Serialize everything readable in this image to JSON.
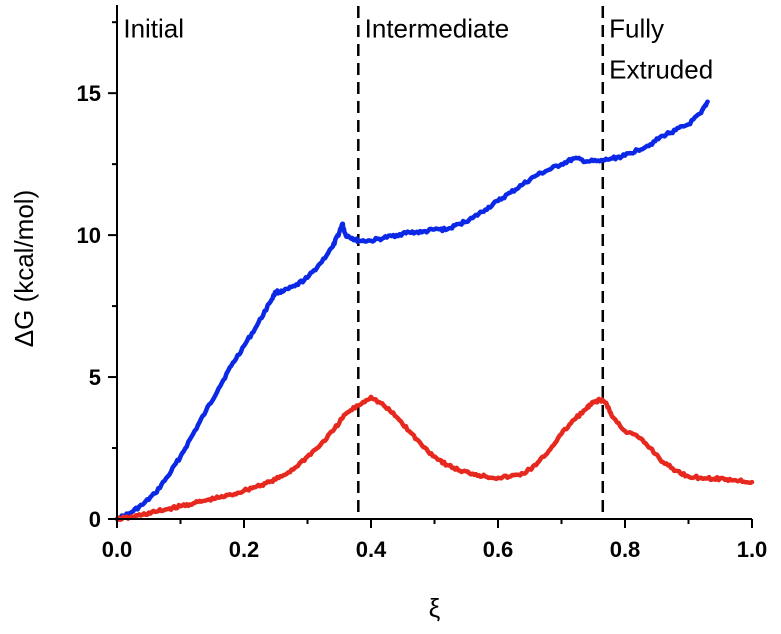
{
  "chart_data": {
    "type": "line",
    "xlabel": "ξ",
    "ylabel": "ΔG (kcal/mol)",
    "xlim": [
      0.0,
      1.0
    ],
    "ylim": [
      0,
      18
    ],
    "x_ticks": [
      "0.0",
      "0.2",
      "0.4",
      "0.6",
      "0.8",
      "1.0"
    ],
    "y_ticks": [
      "0",
      "5",
      "10",
      "15"
    ],
    "grid": false,
    "legend": "none",
    "reference_lines": [
      {
        "x": 0.38,
        "style": "dashed"
      },
      {
        "x": 0.765,
        "style": "dashed"
      }
    ],
    "annotations": [
      {
        "text": "Initial",
        "x": 0.01,
        "y": 17.6
      },
      {
        "text": "Intermediate",
        "x": 0.39,
        "y": 17.6
      },
      {
        "text": "Fully",
        "x": 0.775,
        "y": 17.6
      },
      {
        "text": "Extruded",
        "x": 0.775,
        "y": 16.15
      }
    ],
    "series": [
      {
        "color": "#0a28e6",
        "x": [
          0.0,
          0.02,
          0.04,
          0.06,
          0.08,
          0.1,
          0.12,
          0.14,
          0.16,
          0.18,
          0.2,
          0.22,
          0.24,
          0.25,
          0.26,
          0.28,
          0.3,
          0.32,
          0.34,
          0.35,
          0.355,
          0.36,
          0.37,
          0.38,
          0.4,
          0.42,
          0.44,
          0.46,
          0.48,
          0.5,
          0.52,
          0.54,
          0.56,
          0.58,
          0.6,
          0.62,
          0.64,
          0.66,
          0.68,
          0.7,
          0.72,
          0.74,
          0.76,
          0.78,
          0.8,
          0.82,
          0.84,
          0.86,
          0.88,
          0.9,
          0.92,
          0.93
        ],
        "y": [
          0.0,
          0.2,
          0.5,
          0.9,
          1.5,
          2.2,
          3.0,
          3.8,
          4.6,
          5.4,
          6.1,
          6.8,
          7.6,
          8.0,
          8.0,
          8.2,
          8.5,
          9.0,
          9.6,
          10.1,
          10.4,
          10.0,
          9.9,
          9.8,
          9.8,
          9.9,
          10.0,
          10.1,
          10.1,
          10.2,
          10.2,
          10.4,
          10.6,
          10.9,
          11.2,
          11.5,
          11.8,
          12.1,
          12.3,
          12.5,
          12.7,
          12.6,
          12.6,
          12.7,
          12.8,
          13.0,
          13.2,
          13.5,
          13.7,
          13.9,
          14.3,
          14.7
        ]
      },
      {
        "color": "#e6281e",
        "x": [
          0.0,
          0.02,
          0.04,
          0.06,
          0.08,
          0.1,
          0.12,
          0.14,
          0.16,
          0.18,
          0.2,
          0.22,
          0.24,
          0.26,
          0.28,
          0.3,
          0.32,
          0.34,
          0.36,
          0.38,
          0.4,
          0.42,
          0.44,
          0.46,
          0.48,
          0.5,
          0.52,
          0.54,
          0.56,
          0.58,
          0.6,
          0.62,
          0.64,
          0.66,
          0.68,
          0.7,
          0.72,
          0.74,
          0.75,
          0.76,
          0.77,
          0.78,
          0.8,
          0.82,
          0.84,
          0.86,
          0.88,
          0.9,
          0.92,
          0.94,
          0.96,
          0.98,
          1.0
        ],
        "y": [
          0.0,
          0.05,
          0.15,
          0.25,
          0.35,
          0.45,
          0.55,
          0.65,
          0.75,
          0.85,
          1.0,
          1.15,
          1.3,
          1.5,
          1.8,
          2.2,
          2.6,
          3.1,
          3.7,
          4.0,
          4.3,
          4.0,
          3.6,
          3.1,
          2.6,
          2.2,
          1.9,
          1.7,
          1.6,
          1.5,
          1.45,
          1.5,
          1.6,
          1.9,
          2.4,
          3.0,
          3.5,
          3.9,
          4.1,
          4.2,
          4.1,
          3.6,
          3.1,
          2.9,
          2.5,
          2.0,
          1.7,
          1.5,
          1.45,
          1.42,
          1.4,
          1.35,
          1.3
        ]
      }
    ]
  }
}
